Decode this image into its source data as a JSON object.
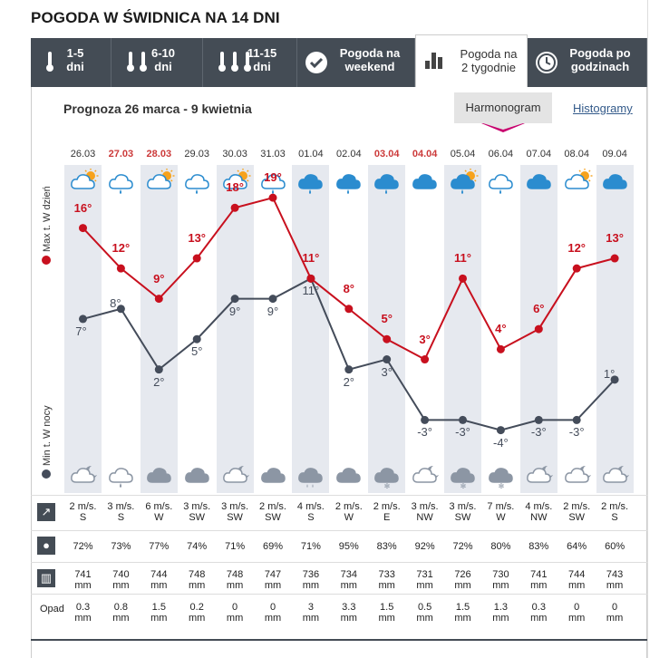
{
  "title": "POGODA W ŚWIDNICA NA 14 DNI",
  "tabs": [
    {
      "line1": "1-5",
      "line2": "dni",
      "icon": "thermometer-icon"
    },
    {
      "line1": "6-10",
      "line2": "dni",
      "icon": "thermometer-icon"
    },
    {
      "line1": "11-15",
      "line2": "dni",
      "icon": "thermometer-icon"
    },
    {
      "line1": "Pogoda na",
      "line2": "weekend",
      "icon": "check-icon"
    },
    {
      "line1": "Pogoda na",
      "line2": "2 tygodnie",
      "icon": "bar-chart-icon"
    },
    {
      "line1": "Pogoda po",
      "line2": "godzinach",
      "icon": "clock-icon"
    }
  ],
  "panel": {
    "title": "Prognoza 26 marca - 9 kwietnia",
    "harmonogram": "Harmonogram",
    "histogramy": "Histogramy",
    "max_label": "Max t. W dzień",
    "min_label": "Min t. W nocy",
    "opad_label": "Opad"
  },
  "colors": {
    "max": "#c8101e",
    "min": "#444c5a",
    "header": "#444c55",
    "weekend": "#cc3a3a"
  },
  "days": [
    {
      "date": "26.03",
      "red": false,
      "day_icon": "cloud-sun-icon",
      "night_icon": "cloud-moon-icon",
      "max": "16°",
      "min": "7°",
      "wind": "2 m/s.",
      "dir": "S",
      "hum": "72%",
      "pres": "741",
      "unit": "mm",
      "rain": "0.3"
    },
    {
      "date": "27.03",
      "red": true,
      "day_icon": "cloud-drop-icon",
      "night_icon": "cloud-drop-icon",
      "max": "12°",
      "min": "8°",
      "wind": "3 m/s.",
      "dir": "S",
      "hum": "73%",
      "pres": "740",
      "unit": "mm",
      "rain": "0.8"
    },
    {
      "date": "28.03",
      "red": true,
      "day_icon": "cloud-sun-icon",
      "night_icon": "cloud-icon",
      "max": "9°",
      "min": "2°",
      "wind": "6 m/s.",
      "dir": "W",
      "hum": "77%",
      "pres": "744",
      "unit": "mm",
      "rain": "1.5"
    },
    {
      "date": "29.03",
      "red": false,
      "day_icon": "cloud-drop-icon",
      "night_icon": "cloud-icon",
      "max": "13°",
      "min": "5°",
      "wind": "3 m/s.",
      "dir": "SW",
      "hum": "74%",
      "pres": "748",
      "unit": "mm",
      "rain": "0.2"
    },
    {
      "date": "30.03",
      "red": false,
      "day_icon": "cloud-sun-icon",
      "night_icon": "cloud-moon-icon",
      "max": "18°",
      "min": "9°",
      "wind": "3 m/s.",
      "dir": "SW",
      "hum": "71%",
      "pres": "748",
      "unit": "mm",
      "rain": "0"
    },
    {
      "date": "31.03",
      "red": false,
      "day_icon": "cloud-drop-icon",
      "night_icon": "cloud-icon",
      "max": "19°",
      "min": "9°",
      "wind": "2 m/s.",
      "dir": "SW",
      "hum": "69%",
      "pres": "747",
      "unit": "mm",
      "rain": "0"
    },
    {
      "date": "01.04",
      "red": false,
      "day_icon": "cloud-rain-icon",
      "night_icon": "cloud-rain-icon",
      "max": "11°",
      "min": "11°",
      "wind": "4 m/s.",
      "dir": "S",
      "hum": "71%",
      "pres": "736",
      "unit": "mm",
      "rain": "3"
    },
    {
      "date": "02.04",
      "red": false,
      "day_icon": "cloud-rain-icon",
      "night_icon": "cloud-icon",
      "max": "8°",
      "min": "2°",
      "wind": "2 m/s.",
      "dir": "W",
      "hum": "95%",
      "pres": "734",
      "unit": "mm",
      "rain": "3.3"
    },
    {
      "date": "03.04",
      "red": true,
      "day_icon": "cloud-rain-icon",
      "night_icon": "cloud-snow-icon",
      "max": "5°",
      "min": "3°",
      "wind": "2 m/s.",
      "dir": "E",
      "hum": "83%",
      "pres": "733",
      "unit": "mm",
      "rain": "1.5"
    },
    {
      "date": "04.04",
      "red": true,
      "day_icon": "cloud-icon",
      "night_icon": "cloud-moon-icon",
      "max": "3°",
      "min": "-3°",
      "wind": "3 m/s.",
      "dir": "NW",
      "hum": "92%",
      "pres": "731",
      "unit": "mm",
      "rain": "0.5"
    },
    {
      "date": "05.04",
      "red": false,
      "day_icon": "cloud-sun-rain-icon",
      "night_icon": "cloud-snow-icon",
      "max": "11°",
      "min": "-3°",
      "wind": "3 m/s.",
      "dir": "SW",
      "hum": "72%",
      "pres": "726",
      "unit": "mm",
      "rain": "1.5"
    },
    {
      "date": "06.04",
      "red": false,
      "day_icon": "cloud-drop-icon",
      "night_icon": "cloud-snow-icon",
      "max": "4°",
      "min": "-4°",
      "wind": "7 m/s.",
      "dir": "W",
      "hum": "80%",
      "pres": "730",
      "unit": "mm",
      "rain": "1.3"
    },
    {
      "date": "07.04",
      "red": false,
      "day_icon": "cloud-icon",
      "night_icon": "cloud-moon-icon",
      "max": "6°",
      "min": "-3°",
      "wind": "4 m/s.",
      "dir": "NW",
      "hum": "83%",
      "pres": "741",
      "unit": "mm",
      "rain": "0.3"
    },
    {
      "date": "08.04",
      "red": false,
      "day_icon": "cloud-sun-icon",
      "night_icon": "cloud-moon-icon",
      "max": "12°",
      "min": "-3°",
      "wind": "2 m/s.",
      "dir": "SW",
      "hum": "64%",
      "pres": "744",
      "unit": "mm",
      "rain": "0"
    },
    {
      "date": "09.04",
      "red": false,
      "day_icon": "cloud-icon",
      "night_icon": "cloud-moon-icon",
      "max": "13°",
      "min": "1°",
      "wind": "2 m/s.",
      "dir": "S",
      "hum": "60%",
      "pres": "743",
      "unit": "mm",
      "rain": "0"
    }
  ],
  "chart_data": {
    "type": "line",
    "categories": [
      "26.03",
      "27.03",
      "28.03",
      "29.03",
      "30.03",
      "31.03",
      "01.04",
      "02.04",
      "03.04",
      "04.04",
      "05.04",
      "06.04",
      "07.04",
      "08.04",
      "09.04"
    ],
    "series": [
      {
        "name": "Max t. W dzień",
        "values": [
          16,
          12,
          9,
          13,
          18,
          19,
          11,
          8,
          5,
          3,
          11,
          4,
          6,
          12,
          13
        ]
      },
      {
        "name": "Min t. W nocy",
        "values": [
          7,
          8,
          2,
          5,
          9,
          9,
          11,
          2,
          3,
          -3,
          -3,
          -4,
          -3,
          -3,
          1
        ]
      }
    ]
  }
}
